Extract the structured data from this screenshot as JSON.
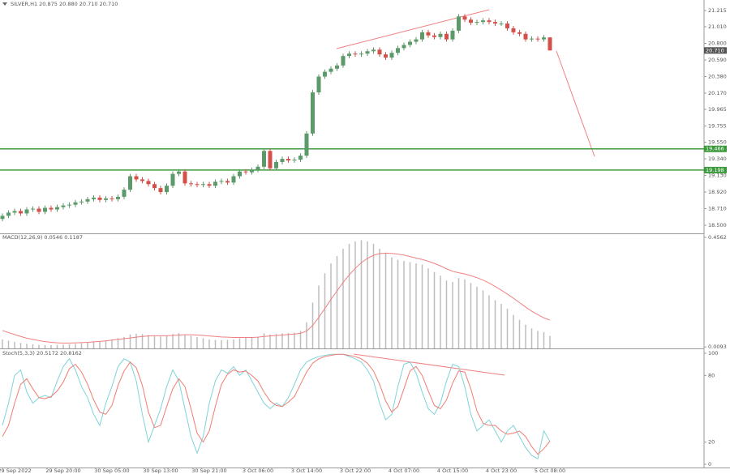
{
  "chart_data": [
    {
      "type": "candlestick",
      "title": "SILVER,H1  20.875 20.880 20.710 20.710",
      "categories": [
        null,
        null,
        "29 Sep 2022",
        null,
        null,
        null,
        null,
        null,
        null,
        null,
        "29 Sep 20:00",
        null,
        null,
        null,
        null,
        null,
        null,
        null,
        "30 Sep 05:00",
        null,
        null,
        null,
        null,
        null,
        null,
        null,
        "30 Sep 13:00",
        null,
        null,
        null,
        null,
        null,
        null,
        null,
        "30 Sep 21:00",
        null,
        null,
        null,
        null,
        null,
        null,
        null,
        "3 Oct 06:00",
        null,
        null,
        null,
        null,
        null,
        null,
        null,
        "3 Oct 14:00",
        null,
        null,
        null,
        null,
        null,
        null,
        null,
        "3 Oct 22:00",
        null,
        null,
        null,
        null,
        null,
        null,
        null,
        "4 Oct 07:00",
        null,
        null,
        null,
        null,
        null,
        null,
        null,
        "4 Oct 15:00",
        null,
        null,
        null,
        null,
        null,
        null,
        null,
        "4 Oct 23:00",
        null,
        null,
        null,
        null,
        null,
        null,
        null,
        "5 Oct 08:00"
      ],
      "open": [
        18.58,
        18.62,
        18.66,
        18.68,
        18.65,
        18.7,
        18.71,
        18.67,
        18.72,
        18.7,
        18.73,
        18.75,
        18.76,
        18.79,
        18.8,
        18.83,
        18.85,
        18.82,
        18.84,
        18.83,
        18.86,
        18.95,
        19.12,
        19.08,
        19.06,
        19.02,
        18.97,
        18.92,
        19.0,
        19.15,
        19.18,
        19.03,
        19.02,
        19.01,
        19.02,
        19.0,
        19.05,
        19.06,
        19.04,
        19.12,
        19.18,
        19.17,
        19.2,
        19.24,
        19.44,
        19.22,
        19.3,
        19.34,
        19.32,
        19.33,
        19.38,
        19.66,
        20.18,
        20.38,
        20.44,
        20.48,
        20.52,
        20.64,
        20.67,
        20.66,
        20.67,
        20.7,
        20.72,
        20.66,
        20.62,
        20.68,
        20.74,
        20.78,
        20.82,
        20.85,
        20.94,
        20.9,
        20.88,
        20.92,
        20.85,
        20.96,
        21.14,
        21.1,
        21.06,
        21.07,
        21.09,
        21.07,
        21.05,
        21.05,
        20.99,
        20.94,
        20.92,
        20.85,
        20.86,
        20.85,
        20.875
      ],
      "high": [
        18.65,
        18.69,
        18.71,
        18.71,
        18.73,
        18.74,
        18.74,
        18.75,
        18.75,
        18.76,
        18.78,
        18.79,
        18.82,
        18.83,
        18.86,
        18.88,
        18.88,
        18.87,
        18.87,
        18.89,
        18.98,
        19.15,
        19.15,
        19.11,
        19.09,
        19.05,
        19.0,
        19.03,
        19.18,
        19.21,
        19.21,
        19.06,
        19.05,
        19.05,
        19.05,
        19.08,
        19.09,
        19.09,
        19.15,
        19.21,
        19.21,
        19.23,
        19.27,
        19.47,
        19.47,
        19.33,
        19.37,
        19.37,
        19.36,
        19.41,
        19.69,
        20.21,
        20.41,
        20.47,
        20.51,
        20.55,
        20.67,
        20.7,
        20.7,
        20.7,
        20.73,
        20.75,
        20.75,
        20.69,
        20.71,
        20.77,
        20.81,
        20.85,
        20.88,
        20.97,
        20.97,
        20.93,
        20.95,
        20.95,
        20.99,
        21.17,
        21.17,
        21.13,
        21.1,
        21.12,
        21.12,
        21.1,
        21.08,
        21.08,
        21.02,
        20.97,
        20.95,
        20.89,
        20.89,
        20.905,
        20.88
      ],
      "low": [
        18.55,
        18.59,
        18.63,
        18.62,
        18.62,
        18.67,
        18.64,
        18.64,
        18.67,
        18.67,
        18.7,
        18.72,
        18.73,
        18.76,
        18.77,
        18.8,
        18.79,
        18.79,
        18.8,
        18.8,
        18.83,
        18.92,
        19.05,
        19.03,
        18.99,
        18.94,
        18.89,
        18.89,
        18.97,
        19.12,
        19.0,
        18.99,
        18.98,
        18.98,
        18.97,
        18.97,
        19.02,
        19.01,
        19.01,
        19.09,
        19.14,
        19.14,
        19.17,
        19.21,
        19.19,
        19.19,
        19.27,
        19.29,
        19.29,
        19.3,
        19.35,
        19.63,
        20.15,
        20.35,
        20.41,
        20.45,
        20.49,
        20.61,
        20.63,
        20.63,
        20.64,
        20.67,
        20.63,
        20.59,
        20.59,
        20.65,
        20.71,
        20.75,
        20.79,
        20.82,
        20.87,
        20.85,
        20.85,
        20.82,
        20.82,
        20.93,
        21.07,
        21.03,
        21.03,
        21.04,
        21.04,
        21.02,
        21.02,
        20.96,
        20.91,
        20.89,
        20.82,
        20.82,
        20.82,
        20.82,
        20.71
      ],
      "close": [
        18.62,
        18.66,
        18.68,
        18.65,
        18.7,
        18.71,
        18.67,
        18.72,
        18.7,
        18.73,
        18.75,
        18.76,
        18.79,
        18.8,
        18.83,
        18.85,
        18.82,
        18.84,
        18.83,
        18.86,
        18.95,
        19.12,
        19.08,
        19.06,
        19.02,
        18.97,
        18.92,
        19.0,
        19.15,
        19.18,
        19.03,
        19.02,
        19.01,
        19.02,
        19.0,
        19.05,
        19.06,
        19.04,
        19.12,
        19.18,
        19.17,
        19.2,
        19.24,
        19.44,
        19.22,
        19.3,
        19.34,
        19.32,
        19.33,
        19.38,
        19.66,
        20.18,
        20.38,
        20.44,
        20.48,
        20.52,
        20.64,
        20.67,
        20.66,
        20.67,
        20.7,
        20.72,
        20.66,
        20.62,
        20.68,
        20.74,
        20.78,
        20.82,
        20.85,
        20.94,
        20.9,
        20.88,
        20.92,
        20.85,
        20.96,
        21.14,
        21.1,
        21.06,
        21.07,
        21.09,
        21.07,
        21.05,
        21.05,
        20.99,
        20.94,
        20.92,
        20.85,
        20.86,
        20.85,
        20.875,
        20.71
      ],
      "up_color": "#5c9a6a",
      "down_color": "#d4504b",
      "ylim": [
        18.398,
        21.348
      ],
      "yticks": [
        21.215,
        {
          "value": 21.01,
          "label": "21.010"
        },
        {
          "value": 20.8,
          "label": "20.800"
        },
        {
          "value": 20.59,
          "label": "20.590"
        },
        {
          "value": 20.38,
          "label": "20.380"
        },
        {
          "value": 20.17,
          "label": "20.170"
        },
        19.965,
        19.755,
        {
          "value": 19.55,
          "label": "19.550"
        },
        {
          "value": 19.34,
          "label": "19.340"
        },
        {
          "value": 19.13,
          "label": "19.130"
        },
        {
          "value": 18.92,
          "label": "18.920"
        },
        {
          "value": 18.71,
          "label": "18.710"
        },
        {
          "value": 18.5,
          "label": "18.500"
        }
      ],
      "levels": [
        19.466,
        19.198
      ],
      "level_color": "#3c9a3c",
      "last_price": {
        "value": 20.71,
        "label": "20.710"
      }
    },
    {
      "type": "bar",
      "title": "MACD(12,26,9) 0.0546 0.1187",
      "values": [
        0.04,
        0.035,
        0.03,
        0.026,
        0.022,
        0.02,
        0.018,
        0.017,
        0.017,
        0.018,
        0.019,
        0.02,
        0.022,
        0.024,
        0.027,
        0.03,
        0.032,
        0.035,
        0.04,
        0.045,
        0.05,
        0.06,
        0.063,
        0.062,
        0.058,
        0.055,
        0.052,
        0.055,
        0.062,
        0.066,
        0.06,
        0.055,
        0.05,
        0.045,
        0.04,
        0.038,
        0.037,
        0.038,
        0.04,
        0.045,
        0.046,
        0.048,
        0.05,
        0.065,
        0.06,
        0.062,
        0.065,
        0.066,
        0.068,
        0.075,
        0.11,
        0.19,
        0.26,
        0.31,
        0.35,
        0.38,
        0.41,
        0.43,
        0.44,
        0.445,
        0.44,
        0.43,
        0.41,
        0.39,
        0.375,
        0.365,
        0.36,
        0.355,
        0.35,
        0.345,
        0.33,
        0.315,
        0.3,
        0.28,
        0.275,
        0.29,
        0.285,
        0.27,
        0.255,
        0.24,
        0.22,
        0.2,
        0.185,
        0.165,
        0.14,
        0.12,
        0.1,
        0.085,
        0.075,
        0.07,
        0.0546
      ],
      "color": "#bdbdbd",
      "signal": {
        "color": "#f08080",
        "values": [
          0.076,
          0.068,
          0.06,
          0.052,
          0.045,
          0.04,
          0.035,
          0.031,
          0.028,
          0.026,
          0.025,
          0.025,
          0.026,
          0.027,
          0.028,
          0.03,
          0.032,
          0.034,
          0.037,
          0.04,
          0.043,
          0.046,
          0.049,
          0.052,
          0.054,
          0.055,
          0.055,
          0.055,
          0.056,
          0.058,
          0.059,
          0.059,
          0.058,
          0.056,
          0.054,
          0.052,
          0.05,
          0.049,
          0.048,
          0.048,
          0.048,
          0.048,
          0.049,
          0.052,
          0.054,
          0.056,
          0.058,
          0.06,
          0.062,
          0.065,
          0.074,
          0.097,
          0.13,
          0.166,
          0.203,
          0.238,
          0.272,
          0.303,
          0.33,
          0.353,
          0.371,
          0.383,
          0.39,
          0.392,
          0.391,
          0.388,
          0.384,
          0.378,
          0.372,
          0.366,
          0.359,
          0.35,
          0.34,
          0.328,
          0.318,
          0.312,
          0.307,
          0.3,
          0.292,
          0.282,
          0.27,
          0.256,
          0.241,
          0.225,
          0.208,
          0.19,
          0.172,
          0.155,
          0.141,
          0.128,
          0.1187
        ]
      },
      "ylim": [
        0.0033,
        0.4694
      ],
      "yticks": [
        0.4562,
        0.0093
      ]
    },
    {
      "type": "line",
      "title": "Stoch(5,3,3) 20.5172 20.8162",
      "series": [
        {
          "color": "#7fd3d8",
          "values": [
            35,
            55,
            80,
            85,
            65,
            55,
            60,
            62,
            60,
            75,
            88,
            95,
            85,
            70,
            60,
            45,
            35,
            55,
            70,
            88,
            95,
            92,
            75,
            45,
            20,
            35,
            50,
            70,
            85,
            75,
            50,
            25,
            10,
            25,
            55,
            75,
            85,
            82,
            88,
            80,
            85,
            75,
            65,
            55,
            50,
            55,
            52,
            60,
            72,
            85,
            92,
            95,
            97,
            98,
            99,
            99,
            99,
            97,
            95,
            92,
            85,
            75,
            55,
            40,
            45,
            70,
            90,
            92,
            82,
            65,
            50,
            45,
            55,
            75,
            90,
            88,
            70,
            45,
            30,
            35,
            40,
            30,
            20,
            30,
            35,
            25,
            15,
            8,
            5,
            30,
            20.5172
          ]
        },
        {
          "color": "#f07c74",
          "values": [
            25,
            35,
            55,
            72,
            77,
            68,
            60,
            59,
            61,
            66,
            74,
            86,
            90,
            83,
            72,
            58,
            47,
            45,
            53,
            71,
            84,
            92,
            87,
            71,
            47,
            33,
            35,
            52,
            68,
            77,
            70,
            50,
            28,
            20,
            30,
            52,
            72,
            81,
            85,
            83,
            84,
            80,
            75,
            65,
            57,
            53,
            52,
            56,
            61,
            72,
            83,
            91,
            95,
            97,
            98,
            99,
            99,
            98,
            97,
            95,
            91,
            84,
            72,
            57,
            47,
            52,
            68,
            84,
            88,
            80,
            66,
            53,
            50,
            58,
            73,
            84,
            83,
            68,
            48,
            37,
            35,
            35,
            30,
            27,
            28,
            30,
            25,
            16,
            9,
            14,
            20.8162
          ]
        }
      ],
      "ylim": [
        -2.9,
        103.6
      ],
      "yticks": [
        100,
        80,
        20,
        0
      ]
    }
  ]
}
